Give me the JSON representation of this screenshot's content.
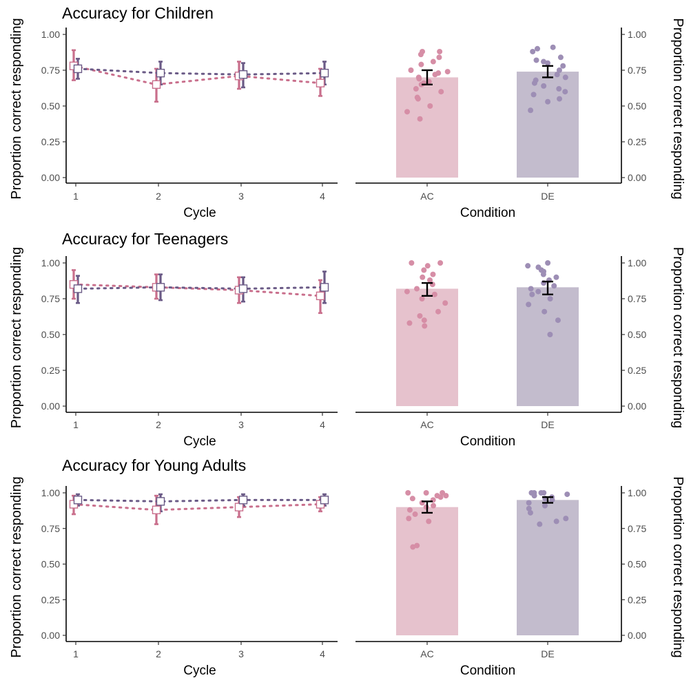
{
  "colors": {
    "ac": "#c96f8c",
    "de": "#6a5a86",
    "ac_bar": "#e6c2cd",
    "de_bar": "#c3bccd",
    "ac_point": "#d68ea6",
    "de_point": "#9d8eb5"
  },
  "chart_data": [
    {
      "type": "line",
      "title": "Accuracy for Children",
      "xlabel": "Cycle",
      "ylabel": "Proportion correct responding",
      "x": [
        1,
        2,
        3,
        4
      ],
      "ylim": [
        0,
        1
      ],
      "yticks": [
        "0.00",
        "0.25",
        "0.50",
        "0.75",
        "1.00"
      ],
      "xticks": [
        "1",
        "2",
        "3",
        "4"
      ],
      "series": [
        {
          "key": "AC",
          "values": [
            0.78,
            0.65,
            0.71,
            0.66
          ],
          "lower": [
            0.68,
            0.53,
            0.62,
            0.57
          ],
          "upper": [
            0.89,
            0.76,
            0.81,
            0.76
          ]
        },
        {
          "key": "DE",
          "values": [
            0.76,
            0.73,
            0.72,
            0.73
          ],
          "lower": [
            0.69,
            0.65,
            0.63,
            0.65
          ],
          "upper": [
            0.83,
            0.81,
            0.8,
            0.81
          ]
        }
      ]
    },
    {
      "type": "bar",
      "xlabel": "Condition",
      "ylabel": "Proportion correct responding",
      "categories": [
        "AC",
        "DE"
      ],
      "values": [
        0.7,
        0.74
      ],
      "error_lower": [
        0.65,
        0.7
      ],
      "error_upper": [
        0.75,
        0.78
      ],
      "ylim": [
        0,
        1
      ],
      "yticks": [
        "0.00",
        "0.25",
        "0.50",
        "0.75",
        "1.00"
      ],
      "points": [
        [
          0.88,
          0.86,
          0.84,
          0.88,
          0.81,
          0.79,
          0.75,
          0.74,
          0.72,
          0.73,
          0.7,
          0.69,
          0.67,
          0.65,
          0.66,
          0.62,
          0.6,
          0.56,
          0.55,
          0.5,
          0.46,
          0.41
        ],
        [
          0.91,
          0.9,
          0.88,
          0.84,
          0.82,
          0.81,
          0.8,
          0.78,
          0.75,
          0.72,
          0.7,
          0.68,
          0.66,
          0.64,
          0.62,
          0.6,
          0.58,
          0.55,
          0.53,
          0.47
        ]
      ]
    },
    {
      "type": "line",
      "title": "Accuracy for Teenagers",
      "xlabel": "Cycle",
      "ylabel": "Proportion correct responding",
      "x": [
        1,
        2,
        3,
        4
      ],
      "ylim": [
        0,
        1
      ],
      "yticks": [
        "0.00",
        "0.25",
        "0.50",
        "0.75",
        "1.00"
      ],
      "xticks": [
        "1",
        "2",
        "3",
        "4"
      ],
      "series": [
        {
          "key": "AC",
          "values": [
            0.85,
            0.83,
            0.81,
            0.77
          ],
          "lower": [
            0.75,
            0.75,
            0.72,
            0.65
          ],
          "upper": [
            0.95,
            0.92,
            0.9,
            0.88
          ]
        },
        {
          "key": "DE",
          "values": [
            0.82,
            0.83,
            0.82,
            0.83
          ],
          "lower": [
            0.72,
            0.74,
            0.73,
            0.72
          ],
          "upper": [
            0.91,
            0.92,
            0.9,
            0.94
          ]
        }
      ]
    },
    {
      "type": "bar",
      "xlabel": "Condition",
      "ylabel": "Proportion correct responding",
      "categories": [
        "AC",
        "DE"
      ],
      "values": [
        0.82,
        0.83
      ],
      "error_lower": [
        0.77,
        0.78
      ],
      "error_upper": [
        0.86,
        0.87
      ],
      "ylim": [
        0,
        1
      ],
      "yticks": [
        "0.00",
        "0.25",
        "0.50",
        "0.75",
        "1.00"
      ],
      "points": [
        [
          1.0,
          1.0,
          0.98,
          0.95,
          0.92,
          0.9,
          0.88,
          0.85,
          0.82,
          0.8,
          0.78,
          0.75,
          0.72,
          0.66,
          0.63,
          0.6,
          0.58,
          0.56
        ],
        [
          1.0,
          0.98,
          0.97,
          0.95,
          0.94,
          0.92,
          0.9,
          0.88,
          0.86,
          0.84,
          0.82,
          0.8,
          0.78,
          0.75,
          0.71,
          0.66,
          0.6,
          0.5
        ]
      ]
    },
    {
      "type": "line",
      "title": "Accuracy for Young Adults",
      "xlabel": "Cycle",
      "ylabel": "Proportion correct responding",
      "x": [
        1,
        2,
        3,
        4
      ],
      "ylim": [
        0,
        1
      ],
      "yticks": [
        "0.00",
        "0.25",
        "0.50",
        "0.75",
        "1.00"
      ],
      "xticks": [
        "1",
        "2",
        "3",
        "4"
      ],
      "series": [
        {
          "key": "AC",
          "values": [
            0.92,
            0.88,
            0.9,
            0.92
          ],
          "lower": [
            0.85,
            0.78,
            0.83,
            0.87
          ],
          "upper": [
            0.98,
            0.98,
            0.97,
            0.97
          ]
        },
        {
          "key": "DE",
          "values": [
            0.95,
            0.94,
            0.95,
            0.95
          ],
          "lower": [
            0.91,
            0.87,
            0.91,
            0.91
          ],
          "upper": [
            0.99,
            0.99,
            0.99,
            0.99
          ]
        }
      ]
    },
    {
      "type": "bar",
      "xlabel": "Condition",
      "ylabel": "Proportion correct responding",
      "categories": [
        "AC",
        "DE"
      ],
      "values": [
        0.9,
        0.95
      ],
      "error_lower": [
        0.86,
        0.93
      ],
      "error_upper": [
        0.94,
        0.97
      ],
      "ylim": [
        0,
        1
      ],
      "yticks": [
        "0.00",
        "0.25",
        "0.50",
        "0.75",
        "1.00"
      ],
      "points": [
        [
          1.0,
          1.0,
          1.0,
          0.98,
          0.98,
          0.97,
          0.96,
          0.95,
          0.93,
          0.91,
          0.9,
          0.88,
          0.85,
          0.82,
          0.8,
          0.63,
          0.62
        ],
        [
          1.0,
          1.0,
          1.0,
          1.0,
          0.99,
          0.98,
          0.97,
          0.96,
          0.95,
          0.93,
          0.91,
          0.89,
          0.86,
          0.82,
          0.8,
          0.78
        ]
      ]
    }
  ]
}
